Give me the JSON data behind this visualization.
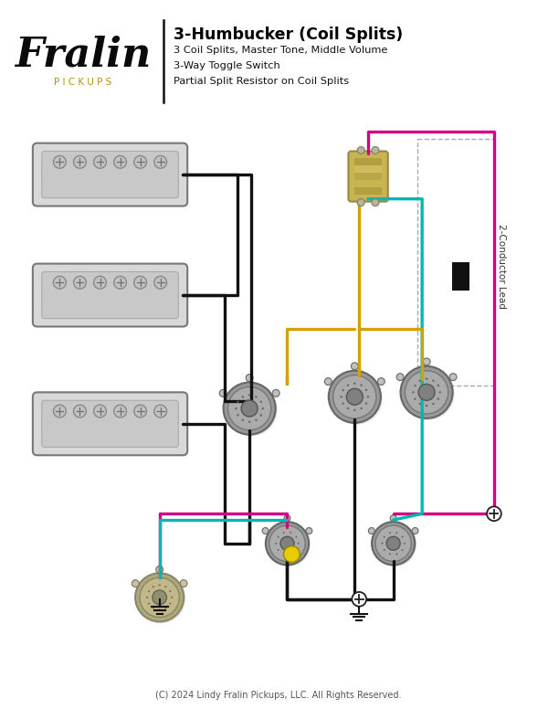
{
  "title": "3-Humbucker (Coil Splits)",
  "subtitle_lines": [
    "3 Coil Splits, Master Tone, Middle Volume",
    "3-Way Toggle Switch",
    "Partial Split Resistor on Coil Splits"
  ],
  "copyright": "(C) 2024 Lindy Fralin Pickups, LLC. All Rights Reserved.",
  "bg_color": "#ffffff",
  "wire_magenta": "#d4007f",
  "wire_teal": "#00b8b0",
  "wire_yellow": "#d4a000",
  "wire_black": "#111111",
  "wire_gray": "#888888",
  "wire_white": "#cccccc",
  "pickup_body": "#d2d2d2",
  "pickup_inner": "#c0c0c0",
  "pickup_screw": "#b4b4b4",
  "pot_outer": "#9a9a9a",
  "pot_mid": "#aaaaaa",
  "pot_hub": "#808080",
  "toggle_fill": "#c8b870",
  "resistor_fill": "#c8b460",
  "conductor_label": "2-Conductor Lead",
  "logo_text": "Fralin",
  "logo_sub": "P I C K U P S",
  "logo_sub_color": "#b89010"
}
